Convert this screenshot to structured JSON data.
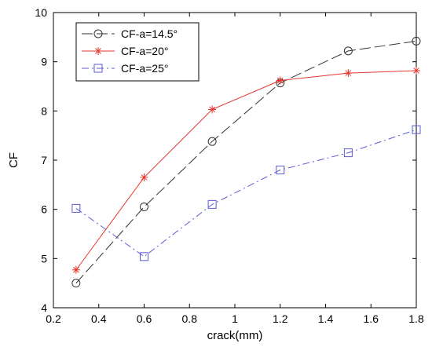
{
  "chart_data": {
    "type": "line",
    "title": "",
    "xlabel": "crack(mm)",
    "ylabel": "CF",
    "xlim": [
      0.2,
      1.8
    ],
    "ylim": [
      4,
      10
    ],
    "xticks": [
      0.2,
      0.4,
      0.6,
      0.8,
      1,
      1.2,
      1.4,
      1.6,
      1.8
    ],
    "xtick_labels": [
      "0.2",
      "0.4",
      "0.6",
      "0.8",
      "1",
      "1.2",
      "1.4",
      "1.6",
      "1.8"
    ],
    "yticks": [
      4,
      5,
      6,
      7,
      8,
      9,
      10
    ],
    "ytick_labels": [
      "4",
      "5",
      "6",
      "7",
      "8",
      "9",
      "10"
    ],
    "grid": false,
    "legend_position": "top-left",
    "x": [
      0.3,
      0.6,
      0.9,
      1.2,
      1.5,
      1.8
    ],
    "series": [
      {
        "name": "CF-a=14.5°",
        "values": [
          4.5,
          6.05,
          7.38,
          8.57,
          9.22,
          9.42
        ],
        "color": "#333333",
        "marker": "circle",
        "line_style": "long-dash"
      },
      {
        "name": "CF-a=20°",
        "values": [
          4.77,
          6.65,
          8.03,
          8.62,
          8.77,
          8.82
        ],
        "color": "#e8352e",
        "marker": "star",
        "line_style": "solid"
      },
      {
        "name": "CF-a=25°",
        "values": [
          6.02,
          5.04,
          6.1,
          6.8,
          7.15,
          7.62
        ],
        "color": "#5b5bd6",
        "marker": "square",
        "line_style": "dash-dot"
      }
    ]
  }
}
